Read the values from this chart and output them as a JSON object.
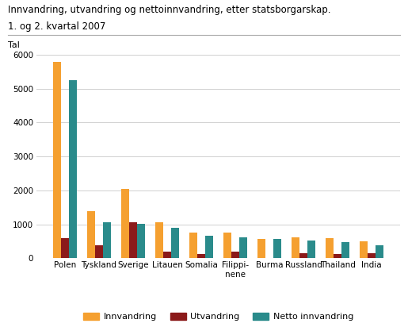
{
  "title_line1": "Innvandring, utvandring og nettoinnvandring, etter statsborgarskap.",
  "title_line2": "1. og 2. kvartal 2007",
  "tal_label": "Tal",
  "categories": [
    "Polen",
    "Tyskland",
    "Sverige",
    "Litauen",
    "Somalia",
    "Filippi-\nnene",
    "Burma",
    "Russland",
    "Thailand",
    "India"
  ],
  "innvandring": [
    5780,
    1390,
    2050,
    1060,
    750,
    760,
    570,
    620,
    580,
    490
  ],
  "utvandring": [
    600,
    370,
    1050,
    190,
    120,
    190,
    0,
    140,
    120,
    140
  ],
  "netto": [
    5250,
    1070,
    1010,
    900,
    650,
    610,
    560,
    510,
    470,
    390
  ],
  "color_innvandring": "#F5A030",
  "color_utvandring": "#8B1A1A",
  "color_netto": "#2A8B8B",
  "legend_labels": [
    "Innvandring",
    "Utvandring",
    "Netto innvandring"
  ],
  "ylim": [
    0,
    6200
  ],
  "yticks": [
    0,
    1000,
    2000,
    3000,
    4000,
    5000,
    6000
  ],
  "background_color": "#ffffff",
  "grid_color": "#d0d0d0"
}
